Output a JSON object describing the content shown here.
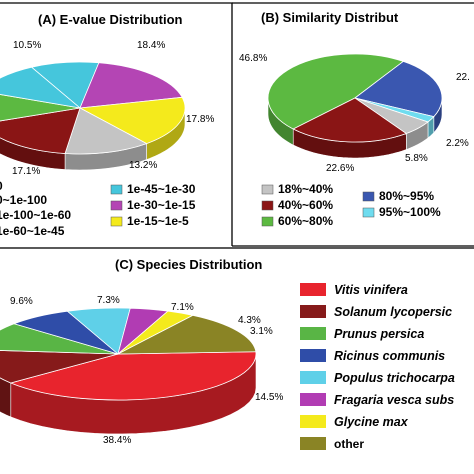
{
  "chart_data": [
    {
      "type": "pie",
      "title": "(A) E-value Distribution",
      "slices": [
        {
          "label": "1e-45~1e-30",
          "value": 10.5,
          "label_text": "10.5%",
          "color": "#45c6dc"
        },
        {
          "label": "1e-30~1e-15",
          "value": 18.4,
          "label_text": "18.4%",
          "color": "#b445b4"
        },
        {
          "label": "1e-15~1e-5",
          "value": 17.8,
          "label_text": "17.8%",
          "color": "#f4ea1c"
        },
        {
          "label": "",
          "value": 13.2,
          "label_text": "13.2%",
          "color": "#c4c4c4"
        },
        {
          "label": "",
          "value": 17.1,
          "label_text": "17.1%",
          "color": "#8a1515"
        },
        {
          "label": "",
          "value": 11.5,
          "label_text": "",
          "color": "#5cb941"
        },
        {
          "label": "",
          "value": 11.5,
          "label_text": "",
          "color": "#45c6dc"
        }
      ],
      "legend_cut": [
        "0",
        "0~1e-100",
        "1e-100~1e-60",
        "1e-60~1e-45"
      ]
    },
    {
      "type": "pie",
      "title": "(B) Similarity Distribut",
      "slices": [
        {
          "label": "60%~80%",
          "value": 46.8,
          "label_text": "46.8%",
          "color": "#5cb941"
        },
        {
          "label": "80%~95%",
          "value": 22.6,
          "label_text": "22.",
          "color": "#3a57b0"
        },
        {
          "label": "95%~100%",
          "value": 2.2,
          "label_text": "2.2%",
          "color": "#6fdcef"
        },
        {
          "label": "18%~40%",
          "value": 5.8,
          "label_text": "5.8%",
          "color": "#c4c4c4"
        },
        {
          "label": "40%~60%",
          "value": 22.6,
          "label_text": "22.6%",
          "color": "#8a1515"
        }
      ]
    },
    {
      "type": "pie",
      "title": "(C) Species Distribution",
      "slices": [
        {
          "label": "Vitis vinifera",
          "value": 38.4,
          "label_text": "38.4%",
          "color": "#e8242d"
        },
        {
          "label": "Solanum lycopersic",
          "value": 11.8,
          "label_text": "",
          "color": "#861a1a"
        },
        {
          "label": "Prunus persica",
          "value": 9.6,
          "label_text": "9.6%",
          "color": "#59b545"
        },
        {
          "label": "Ricinus communis",
          "value": 7.3,
          "label_text": "7.3%",
          "color": "#2f4da8"
        },
        {
          "label": "Populus trichocarpa",
          "value": 7.1,
          "label_text": "7.1%",
          "color": "#5fd0e8"
        },
        {
          "label": "Fragaria vesca subs",
          "value": 4.3,
          "label_text": "4.3%",
          "color": "#b13cb3"
        },
        {
          "label": "Glycine max",
          "value": 3.1,
          "label_text": "3.1%",
          "color": "#f4ea1c"
        },
        {
          "label": "other",
          "value": 14.5,
          "label_text": "14.5%",
          "color": "#8a8425"
        }
      ]
    }
  ]
}
